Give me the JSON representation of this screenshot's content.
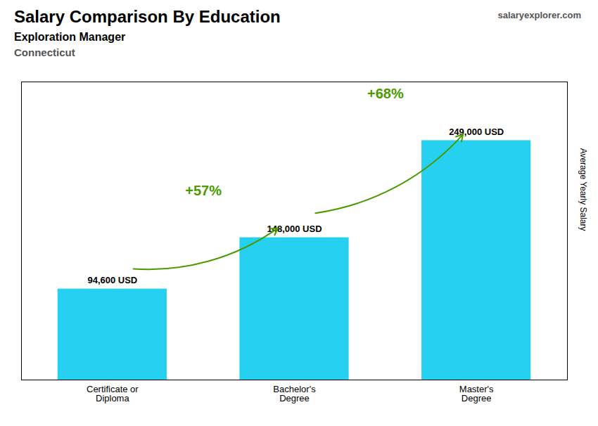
{
  "chart_data": {
    "type": "bar",
    "title": "Salary Comparison By Education",
    "subtitle": "Exploration Manager",
    "subtitle2": "Connecticut",
    "watermark": "salaryexplorer.com",
    "ylabel": "Average Yearly Salary",
    "categories": [
      "Certificate or\nDiploma",
      "Bachelor's\nDegree",
      "Master's\nDegree"
    ],
    "values": [
      94600,
      148000,
      249000
    ],
    "value_labels": [
      "94,600 USD",
      "148,000 USD",
      "249,000 USD"
    ],
    "data_labels": true,
    "annotations": [
      "+57%",
      "+68%"
    ],
    "color": "#25D0F0",
    "ylim": [
      0,
      310000
    ],
    "tick_labels": "x",
    "grid": false
  }
}
